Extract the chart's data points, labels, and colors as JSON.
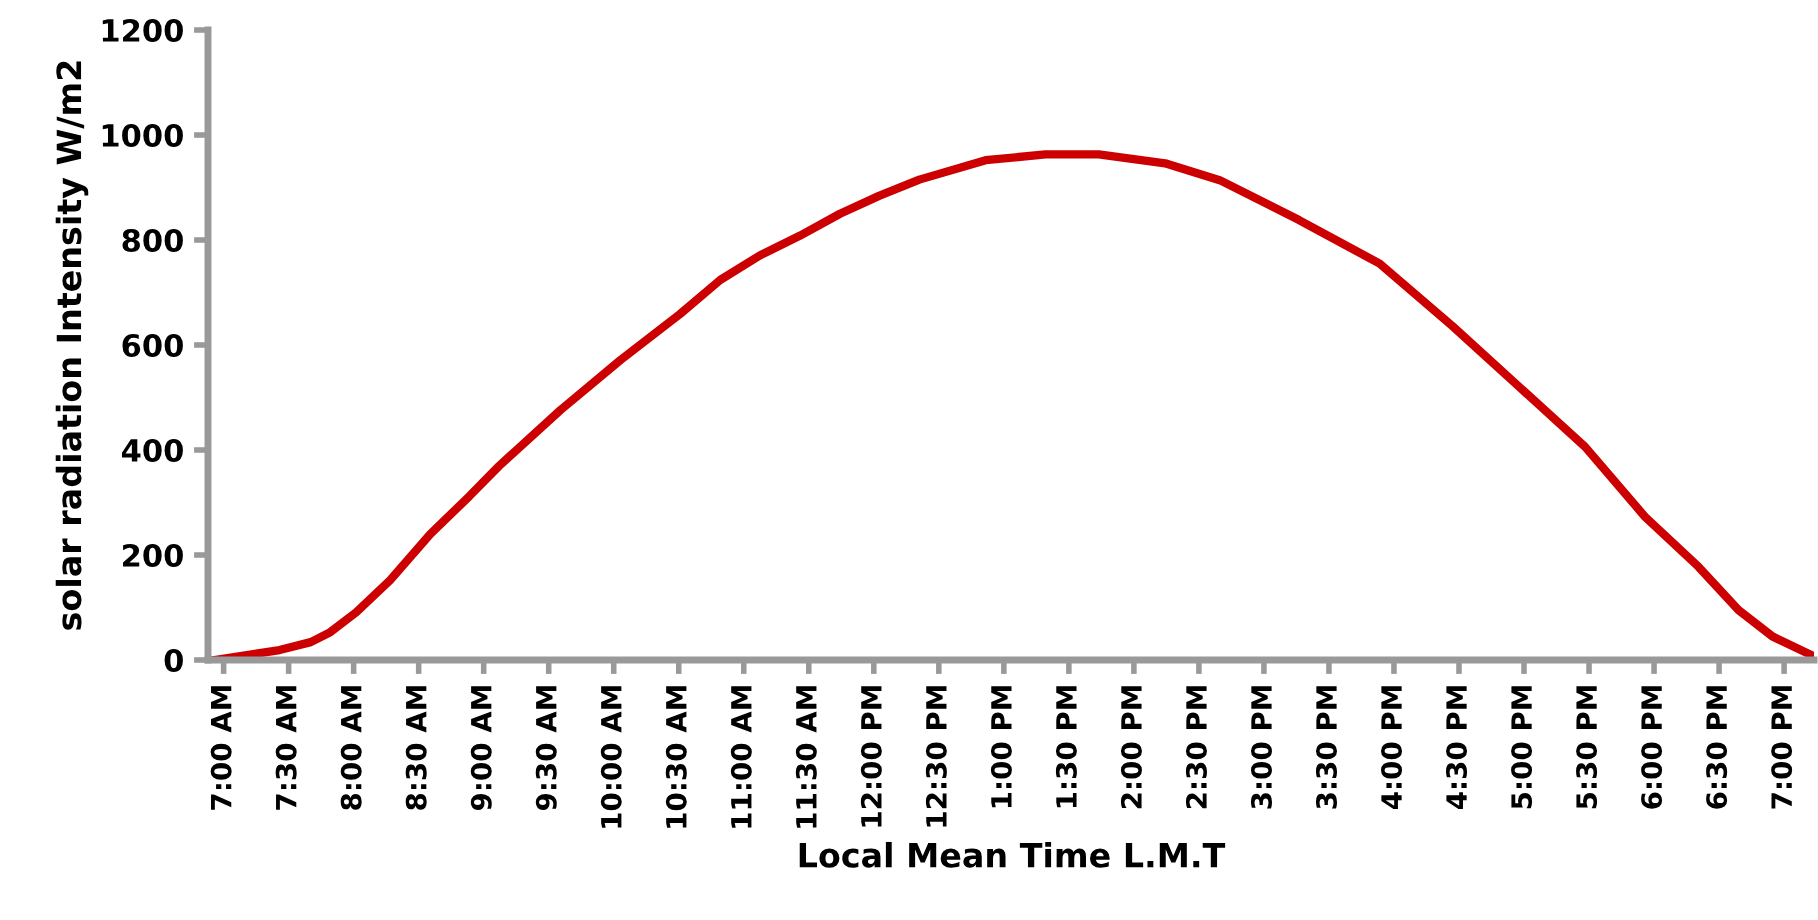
{
  "chart_data": {
    "type": "line",
    "xlabel": "Local Mean Time L.M.T",
    "ylabel": "solar radiation Intensity W/m2",
    "x": [
      6.93,
      7.43,
      7.67,
      7.82,
      8.02,
      8.28,
      8.59,
      8.89,
      9.12,
      9.59,
      10.05,
      10.51,
      10.82,
      11.12,
      11.43,
      11.74,
      12.04,
      12.35,
      12.86,
      13.32,
      13.73,
      14.24,
      14.66,
      15.27,
      15.89,
      16.45,
      16.96,
      17.47,
      17.93,
      18.34,
      18.65,
      18.91,
      19.23
    ],
    "series": [
      {
        "color": "#cc0000",
        "values": [
          0,
          19,
          34,
          53,
          91,
          152,
          240,
          312,
          370,
          476,
          571,
          659,
          724,
          770,
          808,
          850,
          884,
          915,
          952,
          963,
          963,
          946,
          914,
          838,
          755,
          636,
          521,
          406,
          273,
          178,
          95,
          45,
          7
        ]
      }
    ],
    "xlim": [
      6.88,
      19.23
    ],
    "ylim": [
      0,
      1200
    ],
    "yticks": [
      0,
      200,
      400,
      600,
      800,
      1000,
      1200
    ],
    "xticks": [
      {
        "value": 7,
        "label": "7:00 AM"
      },
      {
        "value": 7.5,
        "label": "7:30 AM"
      },
      {
        "value": 8,
        "label": "8:00 AM"
      },
      {
        "value": 8.5,
        "label": "8:30 AM"
      },
      {
        "value": 9,
        "label": "9:00 AM"
      },
      {
        "value": 9.5,
        "label": "9:30 AM"
      },
      {
        "value": 10,
        "label": "10:00 AM"
      },
      {
        "value": 10.5,
        "label": "10:30 AM"
      },
      {
        "value": 11,
        "label": "11:00 AM"
      },
      {
        "value": 11.5,
        "label": "11:30 AM"
      },
      {
        "value": 12,
        "label": "12:00 PM"
      },
      {
        "value": 12.5,
        "label": "12:30 PM"
      },
      {
        "value": 13,
        "label": "1:00 PM"
      },
      {
        "value": 13.5,
        "label": "1:30 PM"
      },
      {
        "value": 14,
        "label": "2:00 PM"
      },
      {
        "value": 14.5,
        "label": "2:30 PM"
      },
      {
        "value": 15,
        "label": "3:00 PM"
      },
      {
        "value": 15.5,
        "label": "3:30 PM"
      },
      {
        "value": 16,
        "label": "4:00 PM"
      },
      {
        "value": 16.5,
        "label": "4:30 PM"
      },
      {
        "value": 17,
        "label": "5:00 PM"
      },
      {
        "value": 17.5,
        "label": "5:30 PM"
      },
      {
        "value": 18,
        "label": "6:00 PM"
      },
      {
        "value": 18.5,
        "label": "6:30 PM"
      },
      {
        "value": 19,
        "label": "7:00 PM"
      }
    ],
    "marker": "none",
    "line_style": "solid"
  }
}
